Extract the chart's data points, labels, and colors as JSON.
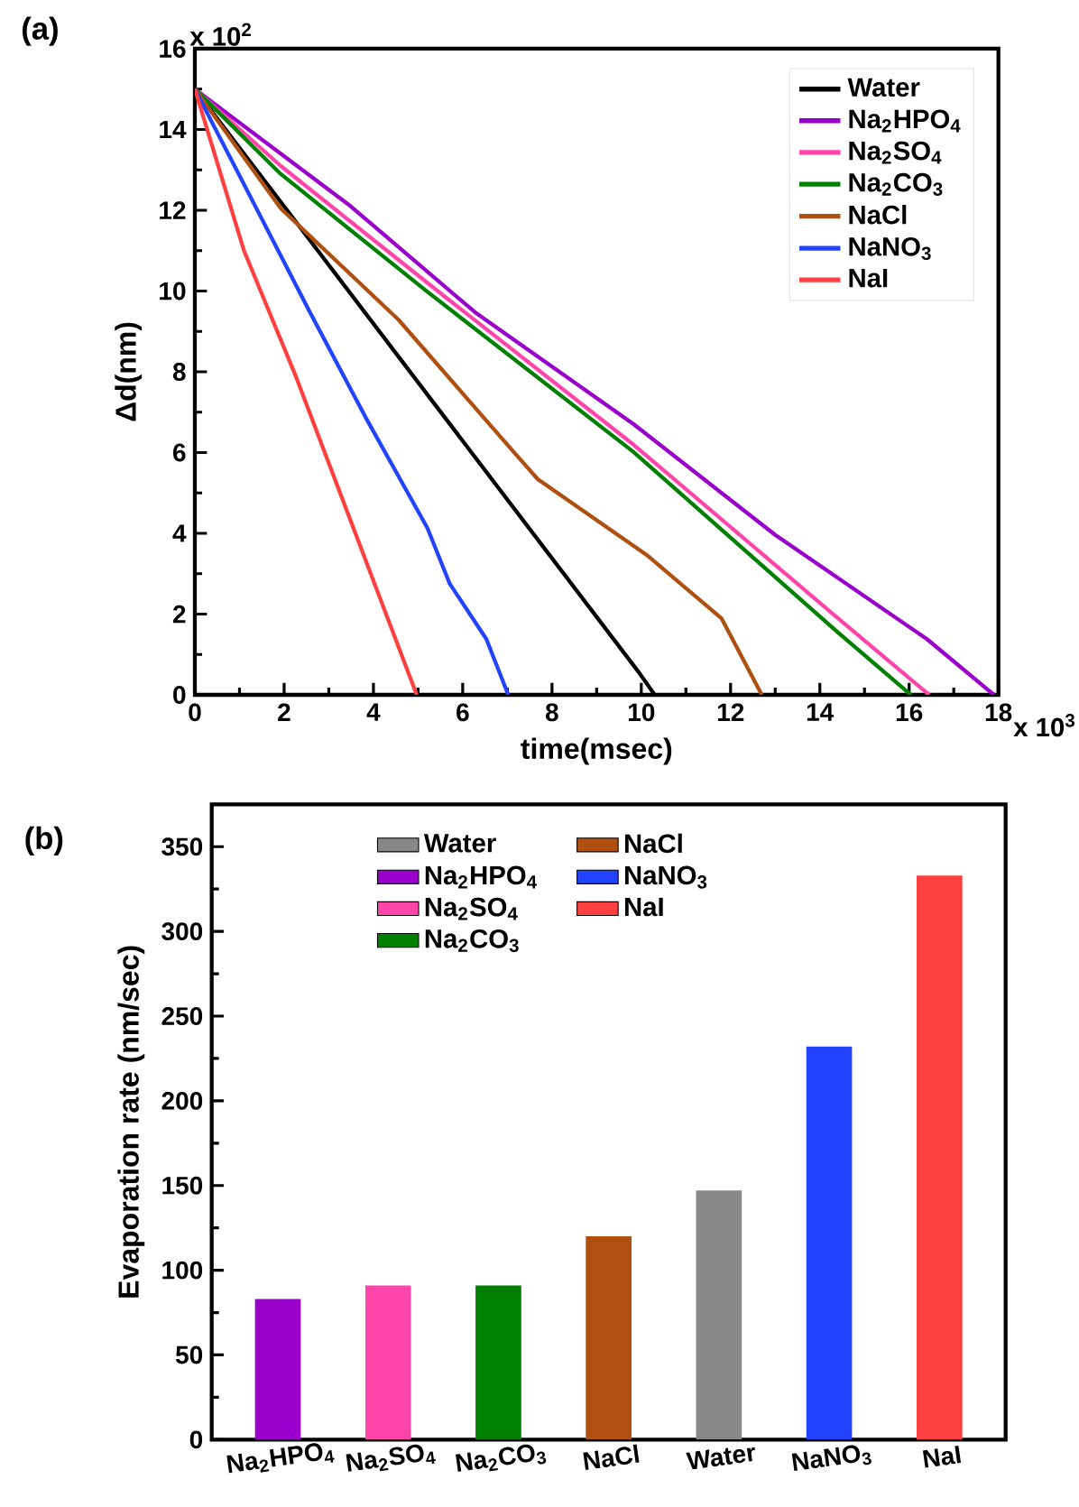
{
  "chart_data": [
    {
      "type": "line",
      "xlabel": "time(msec)",
      "ylabel": "Δd(nm)",
      "xlim": [
        0,
        18
      ],
      "ylim": [
        0,
        16
      ],
      "xticks": [
        0,
        2,
        4,
        6,
        8,
        10,
        12,
        14,
        16,
        18
      ],
      "yticks": [
        0,
        2,
        4,
        6,
        8,
        10,
        12,
        14,
        16
      ],
      "legend": "top right",
      "annotations": [
        "(a)",
        "x 10$^{2}$",
        "x 10$^{3}$"
      ],
      "series": [
        {
          "name": "Water",
          "color": "#000000",
          "x": [
            0,
            9.95,
            10.3
          ],
          "values": [
            15,
            0.55,
            0
          ]
        },
        {
          "name": "Na$_{2}$HPO$_{4}$",
          "color": "#9900cc",
          "x": [
            0,
            3.49,
            6.28,
            9.82,
            13.0,
            16.4,
            17.9
          ],
          "values": [
            15,
            12.1,
            9.47,
            6.71,
            3.96,
            1.38,
            0
          ]
        },
        {
          "name": "Na$_{2}$SO$_{4}$",
          "color": "#ff44aa",
          "x": [
            0,
            1.92,
            5.21,
            9.82,
            14.4,
            16.45
          ],
          "values": [
            15,
            13.1,
            10.2,
            6.2,
            1.9,
            0
          ]
        },
        {
          "name": "Na$_{2}$CO$_{3}$",
          "color": "#008000",
          "x": [
            0,
            1.92,
            5.21,
            9.82,
            14.4,
            16.04
          ],
          "values": [
            15,
            12.9,
            9.98,
            6.02,
            1.55,
            0
          ]
        },
        {
          "name": "NaCl",
          "color": "#b05010",
          "x": [
            0,
            1.92,
            4.56,
            6.86,
            7.68,
            10.15,
            11.8,
            12.7
          ],
          "values": [
            15,
            12.05,
            9.29,
            6.37,
            5.34,
            3.44,
            1.89,
            0
          ]
        },
        {
          "name": "NaNO$_{3}$",
          "color": "#2244ff",
          "x": [
            0,
            2.58,
            3.82,
            5.21,
            5.71,
            6.53,
            7.02
          ],
          "values": [
            15,
            9.47,
            6.88,
            4.13,
            2.75,
            1.38,
            0
          ]
        },
        {
          "name": "NaI",
          "color": "#ff4040",
          "x": [
            0,
            1.1,
            2.25,
            4.97
          ],
          "values": [
            15,
            11.0,
            7.92,
            0
          ]
        }
      ]
    },
    {
      "type": "bar",
      "ylabel": "Evaporation rate (nm/sec)",
      "categories": [
        "Na$_{2}$HPO$_{4}$",
        "Na$_{2}$SO$_{4}$",
        "Na$_{2}$CO$_{3}$",
        "NaCl",
        "Water",
        "NaNO$_{3}$",
        "NaI"
      ],
      "ylim": [
        0,
        375
      ],
      "yticks": [
        0,
        50,
        100,
        150,
        200,
        250,
        300,
        350
      ],
      "legend": "top",
      "annotations": [
        "(b)"
      ],
      "series": [
        {
          "name": "Water",
          "color": "#888888",
          "values": [
            null,
            null,
            null,
            null,
            147,
            null,
            null
          ]
        },
        {
          "name": "Na$_{2}$HPO$_{4}$",
          "color": "#9900cc",
          "values": [
            83,
            null,
            null,
            null,
            null,
            null,
            null
          ]
        },
        {
          "name": "Na$_{2}$SO$_{4}$",
          "color": "#ff44aa",
          "values": [
            null,
            91,
            null,
            null,
            null,
            null,
            null
          ]
        },
        {
          "name": "Na$_{2}$CO$_{3}$",
          "color": "#008000",
          "values": [
            null,
            null,
            91,
            null,
            null,
            null,
            null
          ]
        },
        {
          "name": "NaCl",
          "color": "#b05010",
          "values": [
            null,
            null,
            null,
            120,
            null,
            null,
            null
          ]
        },
        {
          "name": "NaNO$_{3}$",
          "color": "#2244ff",
          "values": [
            null,
            null,
            null,
            null,
            null,
            232,
            null
          ]
        },
        {
          "name": "NaI",
          "color": "#ff4040",
          "values": [
            null,
            null,
            null,
            null,
            null,
            null,
            333
          ]
        }
      ]
    }
  ]
}
